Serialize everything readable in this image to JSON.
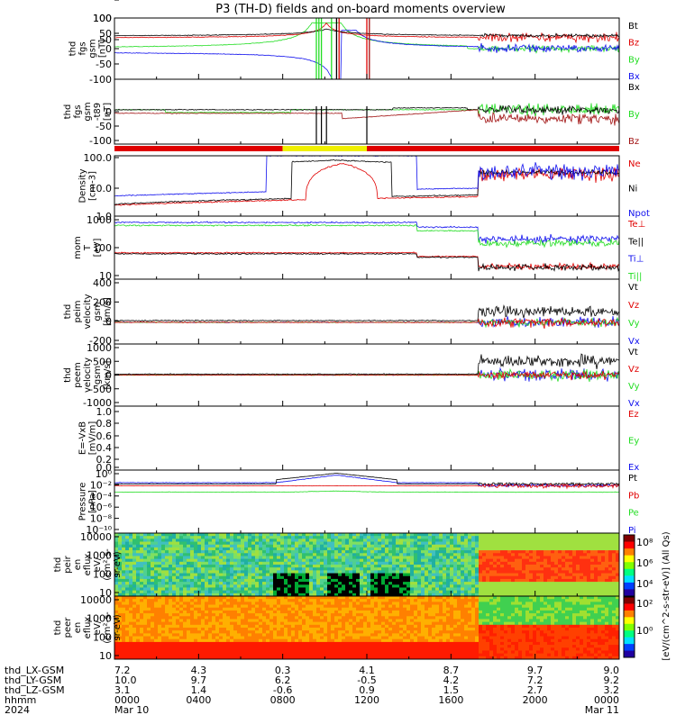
{
  "title": "P3 (TH-D) fields and on-board moments overview",
  "colors": {
    "black": "#000000",
    "red": "#e00000",
    "green": "#22dd22",
    "blue": "#1010ee",
    "yellow": "#f0f000",
    "dkred": "#a01010"
  },
  "panels": [
    {
      "id": "p1",
      "ylabel": [
        "thd",
        "fgs",
        "gsm",
        "[nT]"
      ],
      "yticks": [
        "100",
        "50",
        "0",
        "-50",
        "-100"
      ],
      "ylim": [
        -100,
        100
      ],
      "legend": [
        {
          "text": "Bt",
          "color": "#000000"
        },
        {
          "text": "Bz",
          "color": "#e00000"
        },
        {
          "text": "By",
          "color": "#22dd22"
        },
        {
          "text": "Bx",
          "color": "#1010ee"
        }
      ]
    },
    {
      "id": "p2",
      "ylabel": [
        "thd",
        "fgs",
        "gsm",
        "-t89",
        "[nT]"
      ],
      "yticks": [
        "100",
        "50",
        "0",
        "-50",
        "-100"
      ],
      "ylim": [
        -125,
        100
      ],
      "legend": [
        {
          "text": "Bx",
          "color": "#000000"
        },
        {
          "text": "By",
          "color": "#22dd22"
        },
        {
          "text": "Bz",
          "color": "#a01010"
        }
      ]
    },
    {
      "id": "p3",
      "ylabel": [
        "Density",
        "[cm-3]"
      ],
      "yticks": [
        "100.0",
        "10.0",
        "1.0",
        "0.1"
      ],
      "ylim": [
        0.1,
        100
      ],
      "legend": [
        {
          "text": "Ne",
          "color": "#e00000"
        },
        {
          "text": "Ni",
          "color": "#000000"
        },
        {
          "text": "Npot",
          "color": "#1010ee"
        }
      ]
    },
    {
      "id": "p4",
      "ylabel": [
        "mom",
        "T",
        "[eV]"
      ],
      "yticks": [
        "1000",
        "100",
        "10"
      ],
      "ylim": [
        5,
        5000
      ],
      "legend": [
        {
          "text": "Te⊥",
          "color": "#e00000"
        },
        {
          "text": "Te||",
          "color": "#000000"
        },
        {
          "text": "Ti⊥",
          "color": "#1010ee"
        },
        {
          "text": "Ti||",
          "color": "#22dd22"
        }
      ]
    },
    {
      "id": "p5",
      "ylabel": [
        "thd",
        "peim",
        "velocity",
        "gsm",
        "[km/s]"
      ],
      "yticks": [
        "400",
        "200",
        "0",
        "-200"
      ],
      "ylim": [
        -200,
        400
      ],
      "legend": [
        {
          "text": "Vt",
          "color": "#000000"
        },
        {
          "text": "Vz",
          "color": "#e00000"
        },
        {
          "text": "Vy",
          "color": "#22dd22"
        },
        {
          "text": "Vx",
          "color": "#1010ee"
        }
      ]
    },
    {
      "id": "p6",
      "ylabel": [
        "thd",
        "peem",
        "velocity",
        "gsm",
        "[km/s]"
      ],
      "yticks": [
        "1000",
        "500",
        "0",
        "-500",
        "-1000"
      ],
      "ylim": [
        -1000,
        1000
      ],
      "legend": [
        {
          "text": "Vt",
          "color": "#000000"
        },
        {
          "text": "Vz",
          "color": "#e00000"
        },
        {
          "text": "Vy",
          "color": "#22dd22"
        },
        {
          "text": "Vx",
          "color": "#1010ee"
        }
      ]
    },
    {
      "id": "p7",
      "ylabel": [
        "E=-VxB",
        "[mV/m]"
      ],
      "yticks": [
        "1.0",
        "0.8",
        "0.6",
        "0.4",
        "0.2",
        "0.0"
      ],
      "ylim": [
        0,
        1
      ],
      "legend": [
        {
          "text": "Ez",
          "color": "#e00000"
        },
        {
          "text": "Ey",
          "color": "#22dd22"
        },
        {
          "text": "Ex",
          "color": "#1010ee"
        }
      ]
    },
    {
      "id": "p8",
      "ylabel": [
        "Pressure",
        "[nPa]"
      ],
      "yticks": [
        "10⁰",
        "10⁻²",
        "10⁻⁴",
        "10⁻⁶",
        "10⁻⁸",
        "10⁻¹⁰"
      ],
      "ylim": [
        -10,
        0
      ],
      "legend": [
        {
          "text": "Pt",
          "color": "#000000"
        },
        {
          "text": "Pb",
          "color": "#e00000"
        },
        {
          "text": "Pe",
          "color": "#22dd22"
        },
        {
          "text": "Pi",
          "color": "#1010ee"
        }
      ]
    },
    {
      "id": "p9",
      "ylabel": [
        "thd",
        "peir",
        "en",
        "eflux",
        "eV/",
        "(cm²-s-",
        "sr-eV)"
      ],
      "yticks": [
        "10000",
        "1000",
        "100",
        "10"
      ],
      "ylim": [
        5,
        30000
      ]
    },
    {
      "id": "p10",
      "ylabel": [
        "thd",
        "peer",
        "en",
        "eflux",
        "eV/",
        "(cm²-s-",
        "sr-eV)"
      ],
      "yticks": [
        "10000",
        "1000",
        "100",
        "10"
      ],
      "ylim": [
        5,
        30000
      ]
    }
  ],
  "mode_bar": {
    "segments": [
      {
        "from": 0.0,
        "to": 0.333,
        "color": "#e00000"
      },
      {
        "from": 0.333,
        "to": 0.5,
        "color": "#f0f000"
      },
      {
        "from": 0.5,
        "to": 1.0,
        "color": "#e00000"
      }
    ]
  },
  "colorbar": {
    "label": "[eV/(cm^2-s-str-eV)] (All Qs)",
    "ticks": [
      "10⁸",
      "10⁶",
      "10⁴",
      "10²",
      "10⁰"
    ]
  },
  "ephemeris": {
    "rows": [
      {
        "label": "thd_LX-GSM",
        "values": [
          "7.2",
          "4.3",
          "0.3",
          "4.1",
          "8.7",
          "9.7",
          "9.0"
        ]
      },
      {
        "label": "thd_LY-GSM",
        "values": [
          "10.0",
          "9.7",
          "6.2",
          "-0.5",
          "4.2",
          "7.2",
          "9.2"
        ]
      },
      {
        "label": "thd_LZ-GSM",
        "values": [
          "3.1",
          "1.4",
          "-0.6",
          "0.9",
          "1.5",
          "2.7",
          "3.2"
        ]
      },
      {
        "label": "hhmm",
        "values": [
          "0000",
          "0400",
          "0800",
          "1200",
          "1600",
          "2000",
          "0000"
        ]
      },
      {
        "label": "2024",
        "values": [
          "Mar 10",
          "",
          "",
          "",
          "",
          "",
          "Mar 11"
        ]
      }
    ],
    "value_columns": [
      0,
      1,
      2,
      3,
      4,
      5,
      6
    ],
    "ticks_hours": [
      0,
      4,
      8,
      12,
      16,
      20,
      24
    ]
  }
}
